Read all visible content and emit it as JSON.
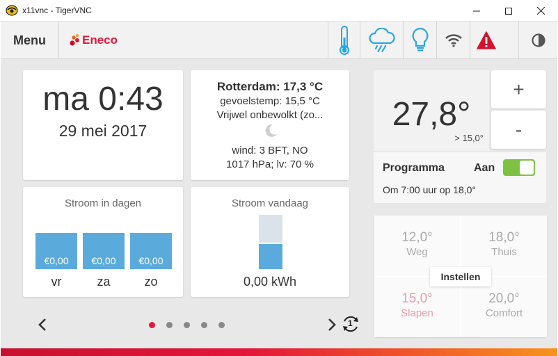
{
  "window": {
    "title": "x11vnc - TigerVNC"
  },
  "topbar": {
    "menu_label": "Menu",
    "logo_text": "Eneco",
    "icons": [
      "thermometer-icon",
      "rain-cloud-icon",
      "lightbulb-icon",
      "wifi-icon",
      "warning-icon",
      "dim-icon"
    ],
    "colors": {
      "brand": "#e4163a",
      "icon_blue": "#2aa6e0",
      "warning": "#d2132e"
    }
  },
  "clock": {
    "time": "ma 0:43",
    "date": "29 mei 2017"
  },
  "weather": {
    "city": "Rotterdam: 17,3 °C",
    "feels_like": "gevoelstemp: 15,5 °C",
    "description": "Vrijwel onbewolkt (zo...",
    "icon": "moon-icon",
    "wind": "wind: 3 BFT, NO",
    "pressure_humidity": "1017 hPa; lv: 70 %"
  },
  "power_days": {
    "title": "Stroom in dagen",
    "days": [
      {
        "value": "€0,00",
        "label": "vr"
      },
      {
        "value": "€0,00",
        "label": "za"
      },
      {
        "value": "€0,00",
        "label": "zo"
      }
    ]
  },
  "power_today": {
    "title": "Stroom vandaag",
    "value": "0,00 kWh"
  },
  "thermostat": {
    "current": "27,8°",
    "setpoint": "> 15,0°",
    "plus": "+",
    "minus": "-",
    "program_label": "Programma",
    "program_state": "Aan",
    "program_on": true,
    "next": "Om 7:00 uur op 18,0°"
  },
  "presets": [
    {
      "temp": "12,0°",
      "name": "Weg",
      "active": false
    },
    {
      "temp": "18,0°",
      "name": "Thuis",
      "active": false
    },
    {
      "temp": "15,0°",
      "name": "Slapen",
      "active": true
    },
    {
      "temp": "20,0°",
      "name": "Comfort",
      "active": false
    }
  ],
  "instellen_label": "Instellen",
  "pager": {
    "pages": 5,
    "current": 1,
    "refresh_badge": "1"
  }
}
